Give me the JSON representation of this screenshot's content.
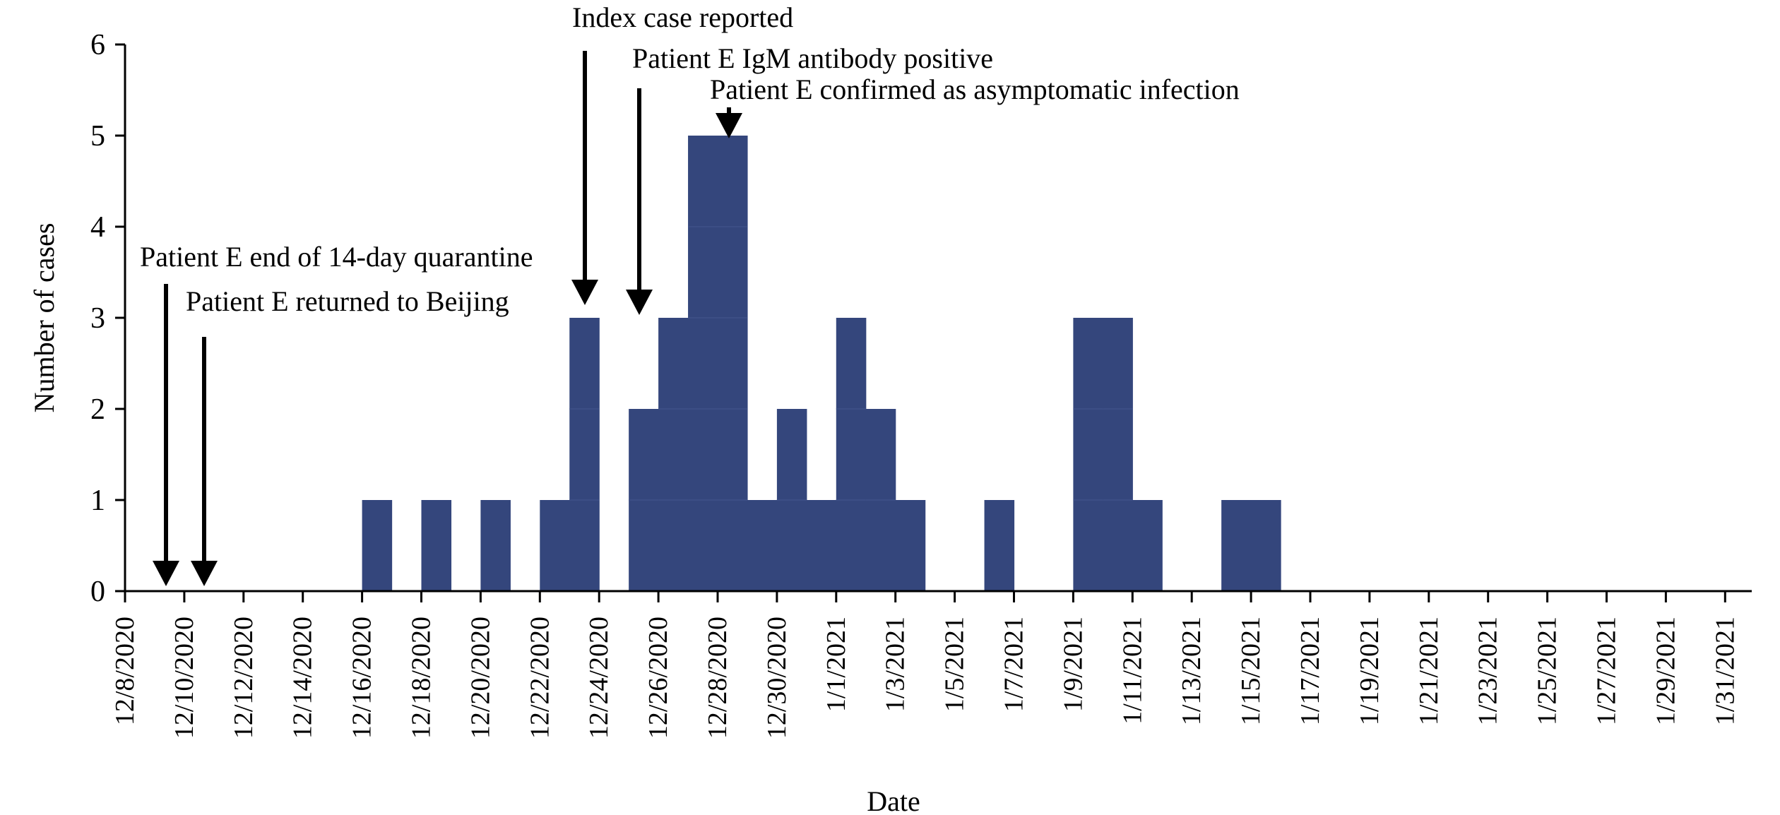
{
  "chart_data": {
    "type": "bar",
    "title": "",
    "xlabel": "Date",
    "ylabel": "Number of cases",
    "ylim": [
      0,
      6
    ],
    "yticks": [
      0,
      1,
      2,
      3,
      4,
      5,
      6
    ],
    "x_start_date": "12/8/2020",
    "xtick_labels": [
      "12/8/2020",
      "12/10/2020",
      "12/12/2020",
      "12/14/2020",
      "12/16/2020",
      "12/18/2020",
      "12/20/2020",
      "12/22/2020",
      "12/24/2020",
      "12/26/2020",
      "12/28/2020",
      "12/30/2020",
      "1/1/2021",
      "1/3/2021",
      "1/5/2021",
      "1/7/2021",
      "1/9/2021",
      "1/11/2021",
      "1/13/2021",
      "1/15/2021",
      "1/17/2021",
      "1/19/2021",
      "1/21/2021",
      "1/23/2021",
      "1/25/2021",
      "1/27/2021",
      "1/29/2021",
      "1/31/2021"
    ],
    "bars": [
      {
        "date": "12/16/2020",
        "value": 1
      },
      {
        "date": "12/18/2020",
        "value": 1
      },
      {
        "date": "12/20/2020",
        "value": 1
      },
      {
        "date": "12/22/2020",
        "value": 1
      },
      {
        "date": "12/23/2020",
        "value": 3
      },
      {
        "date": "12/25/2020",
        "value": 2
      },
      {
        "date": "12/26/2020",
        "value": 3
      },
      {
        "date": "12/27/2020",
        "value": 5
      },
      {
        "date": "12/28/2020",
        "value": 5
      },
      {
        "date": "12/29/2020",
        "value": 1
      },
      {
        "date": "12/30/2020",
        "value": 2
      },
      {
        "date": "12/31/2020",
        "value": 1
      },
      {
        "date": "1/1/2021",
        "value": 3
      },
      {
        "date": "1/2/2021",
        "value": 2
      },
      {
        "date": "1/3/2021",
        "value": 1
      },
      {
        "date": "1/6/2021",
        "value": 1
      },
      {
        "date": "1/9/2021",
        "value": 3
      },
      {
        "date": "1/10/2021",
        "value": 3
      },
      {
        "date": "1/11/2021",
        "value": 1
      },
      {
        "date": "1/14/2021",
        "value": 1
      },
      {
        "date": "1/15/2021",
        "value": 1
      }
    ],
    "annotations": [
      {
        "text": "Index case reported",
        "date": "12/23/2020"
      },
      {
        "text": "Patient E IgM antibody positive",
        "date": "12/25/2020"
      },
      {
        "text": "Patient E confirmed as asymptomatic infection",
        "date": "12/28/2020"
      },
      {
        "text": "Patient E end of 14-day quarantine",
        "date": "12/9/2020"
      },
      {
        "text": "Patient E returned to Beijing",
        "date": "12/10/2020"
      }
    ],
    "grid": false,
    "legend": "none",
    "colors": {
      "bar": "#34467c",
      "bar_divider": "#3f5088",
      "axis": "#000000",
      "arrow": "#000000"
    }
  }
}
